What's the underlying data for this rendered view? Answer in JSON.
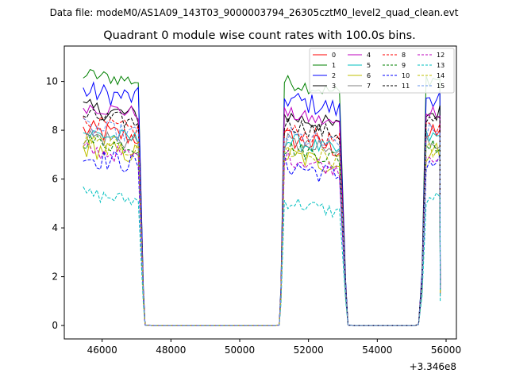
{
  "chart_data": {
    "type": "line",
    "suptitle": "Data file: modeM0/AS1A09_143T03_9000003794_26305cztM0_level2_quad_clean.evt",
    "title": "Quadrant 0 module wise count rates with 100.0s bins.",
    "xlabel": "",
    "ylabel": "",
    "x_offset_label": "+3.346e8",
    "xlim": [
      44900,
      56300
    ],
    "ylim": [
      -0.55,
      11.45
    ],
    "x_ticks": [
      46000,
      48000,
      50000,
      52000,
      54000,
      56000
    ],
    "x_tick_labels": [
      "46000",
      "48000",
      "50000",
      "52000",
      "54000",
      "56000"
    ],
    "y_ticks": [
      0,
      2,
      4,
      6,
      8,
      10
    ],
    "y_tick_labels": [
      "0",
      "2",
      "4",
      "6",
      "8",
      "10"
    ],
    "grid": false,
    "legend_position": "top-right",
    "legend_columns": 4,
    "segments": [
      {
        "start": 45450,
        "end": 47080,
        "fall_to": 47200
      },
      {
        "start": 51300,
        "end": 52980,
        "rise_from": 51200,
        "fall_to": 53080
      },
      {
        "start": 55420,
        "end": 55830,
        "rise_from": 55300
      }
    ],
    "gap_start": 47250,
    "gap_end": 51150,
    "bin_size": 100,
    "series": [
      {
        "name": "0",
        "color": "#ff0000",
        "dash": false,
        "level": 8.0,
        "amp": 0.45,
        "end_level": 1.3
      },
      {
        "name": "1",
        "color": "#008000",
        "dash": false,
        "level": 10.3,
        "amp": 0.3,
        "end_level": 1.8
      },
      {
        "name": "2",
        "color": "#0000ff",
        "dash": false,
        "level": 9.6,
        "amp": 0.45,
        "end_level": 1.8
      },
      {
        "name": "3",
        "color": "#000000",
        "dash": false,
        "level": 8.9,
        "amp": 0.4,
        "end_level": 1.6
      },
      {
        "name": "4",
        "color": "#bf00bf",
        "dash": false,
        "level": 9.0,
        "amp": 0.3,
        "end_level": 1.6
      },
      {
        "name": "5",
        "color": "#00bfbf",
        "dash": false,
        "level": 7.9,
        "amp": 0.35,
        "end_level": 1.4
      },
      {
        "name": "6",
        "color": "#bfbf00",
        "dash": false,
        "level": 7.3,
        "amp": 0.45,
        "end_level": 1.2
      },
      {
        "name": "7",
        "color": "#808080",
        "dash": false,
        "level": 7.8,
        "amp": 0.4,
        "end_level": 1.4
      },
      {
        "name": "8",
        "color": "#ff0000",
        "dash": true,
        "level": 8.3,
        "amp": 0.35,
        "end_level": 1.5
      },
      {
        "name": "9",
        "color": "#008000",
        "dash": true,
        "level": 7.6,
        "amp": 0.35,
        "end_level": 1.4
      },
      {
        "name": "10",
        "color": "#0000ff",
        "dash": true,
        "level": 6.9,
        "amp": 0.45,
        "end_level": 1.2
      },
      {
        "name": "11",
        "color": "#000000",
        "dash": true,
        "level": 8.6,
        "amp": 0.35,
        "end_level": 1.6
      },
      {
        "name": "12",
        "color": "#bf00bf",
        "dash": true,
        "level": 7.2,
        "amp": 0.35,
        "end_level": 1.3
      },
      {
        "name": "13",
        "color": "#00bfbf",
        "dash": true,
        "level": 5.4,
        "amp": 0.3,
        "end_level": 1.0
      },
      {
        "name": "14",
        "color": "#bfbf00",
        "dash": true,
        "level": 7.5,
        "amp": 0.4,
        "end_level": 1.3
      },
      {
        "name": "15",
        "color": "#6495ed",
        "dash": true,
        "level": 8.1,
        "amp": 0.4,
        "end_level": 1.5
      }
    ]
  }
}
